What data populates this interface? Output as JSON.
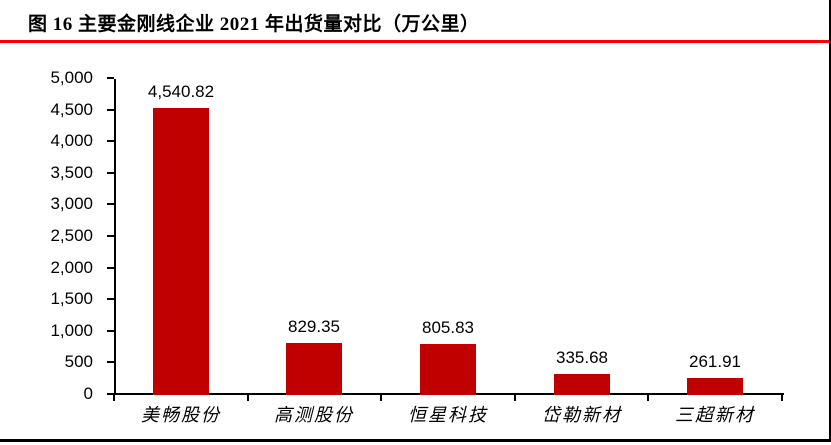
{
  "figure": {
    "title": "图 16 主要金刚线企业 2021 年出货量对比（万公里）"
  },
  "colors": {
    "bar": "#C00000",
    "title_underline": "#FF0000",
    "axis": "#000000",
    "frame_border": "#000000",
    "text": "#000000",
    "background": "#FFFFFF"
  },
  "chart_data": {
    "type": "bar",
    "title": "图 16 主要金刚线企业 2021 年出货量对比（万公里）",
    "categories": [
      "美畅股份",
      "高测股份",
      "恒星科技",
      "岱勒新材",
      "三超新材"
    ],
    "values": [
      4540.82,
      829.35,
      805.83,
      335.68,
      261.91
    ],
    "value_labels": [
      "4,540.82",
      "829.35",
      "805.83",
      "335.68",
      "261.91"
    ],
    "xlabel": "",
    "ylabel": "",
    "ylim": [
      0,
      5000
    ],
    "ytick_step": 500,
    "ytick_labels": [
      "0",
      "500",
      "1,000",
      "1,500",
      "2,000",
      "2,500",
      "3,000",
      "3,500",
      "4,000",
      "4,500",
      "5,000"
    ],
    "grid": false,
    "legend": "none",
    "bar_color": "#C00000"
  }
}
